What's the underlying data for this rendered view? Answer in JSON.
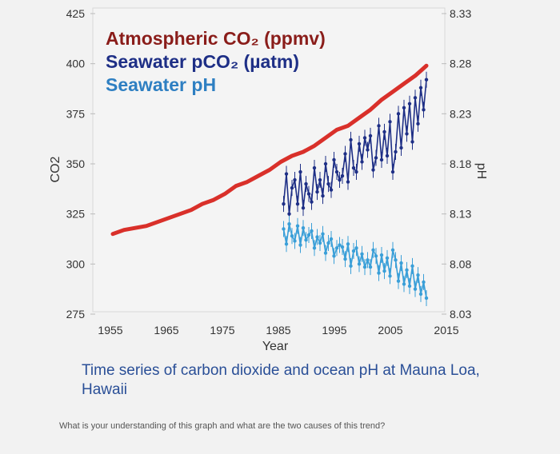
{
  "chart_data": {
    "type": "line",
    "title": "Time series of carbon dioxide and ocean pH at Mauna Loa, Hawaii",
    "xlabel": "Year",
    "ylabel_left": "CO2",
    "ylabel_right": "pH",
    "xlim": [
      1955,
      2015
    ],
    "ylim_left": [
      275,
      425
    ],
    "ylim_right": [
      8.03,
      8.33
    ],
    "x_ticks": [
      "1955",
      "1965",
      "1975",
      "1985",
      "1995",
      "2005",
      "2015"
    ],
    "y_ticks_left": [
      "425",
      "400",
      "375",
      "350",
      "325",
      "300",
      "275"
    ],
    "y_ticks_right": [
      "8.33",
      "8.28",
      "8.23",
      "8.18",
      "8.13",
      "8.08",
      "8.03"
    ],
    "legend": [
      "Atmospheric CO₂ (ppmv)",
      "Seawater pCO₂ (µatm)",
      "Seawater pH"
    ],
    "series": [
      {
        "name": "Atmospheric CO₂ (ppmv)",
        "color": "#d9302a",
        "axis": "left",
        "x": [
          1958,
          1960,
          1962,
          1964,
          1966,
          1968,
          1970,
          1972,
          1974,
          1976,
          1978,
          1980,
          1982,
          1984,
          1986,
          1988,
          1990,
          1992,
          1994,
          1996,
          1998,
          2000,
          2002,
          2004,
          2006,
          2008,
          2010,
          2012,
          2014
        ],
        "values": [
          315,
          317,
          318,
          319,
          321,
          323,
          325,
          327,
          330,
          332,
          335,
          339,
          341,
          344,
          347,
          351,
          354,
          356,
          359,
          363,
          367,
          369,
          373,
          377,
          382,
          386,
          390,
          394,
          399
        ]
      },
      {
        "name": "Seawater pCO₂ (µatm)",
        "color": "#1e2f86",
        "axis": "left",
        "x": [
          1988.5,
          1989,
          1989.5,
          1990,
          1990.5,
          1991,
          1991.5,
          1992,
          1992.5,
          1993,
          1993.5,
          1994,
          1994.5,
          1995,
          1995.5,
          1996,
          1996.5,
          1997,
          1997.5,
          1998,
          1998.5,
          1999,
          1999.5,
          2000,
          2000.5,
          2001,
          2001.5,
          2002,
          2002.5,
          2003,
          2003.5,
          2004,
          2004.5,
          2005,
          2005.5,
          2006,
          2006.5,
          2007,
          2007.5,
          2008,
          2008.5,
          2009,
          2009.5,
          2010,
          2010.5,
          2011,
          2011.5,
          2012,
          2012.5,
          2013,
          2013.5,
          2014
        ],
        "values": [
          330,
          345,
          325,
          338,
          342,
          330,
          346,
          328,
          340,
          335,
          331,
          348,
          336,
          342,
          334,
          350,
          340,
          337,
          352,
          346,
          342,
          344,
          355,
          341,
          362,
          348,
          346,
          360,
          351,
          363,
          357,
          364,
          347,
          353,
          369,
          352,
          366,
          354,
          371,
          346,
          356,
          375,
          358,
          378,
          365,
          380,
          361,
          383,
          370,
          388,
          377,
          392
        ]
      },
      {
        "name": "Seawater pH",
        "color": "#3a9fd8",
        "axis": "right",
        "x": [
          1988.5,
          1989,
          1989.5,
          1990,
          1990.5,
          1991,
          1991.5,
          1992,
          1992.5,
          1993,
          1993.5,
          1994,
          1994.5,
          1995,
          1995.5,
          1996,
          1996.5,
          1997,
          1997.5,
          1998,
          1998.5,
          1999,
          1999.5,
          2000,
          2000.5,
          2001,
          2001.5,
          2002,
          2002.5,
          2003,
          2003.5,
          2004,
          2004.5,
          2005,
          2005.5,
          2006,
          2006.5,
          2007,
          2007.5,
          2008,
          2008.5,
          2009,
          2009.5,
          2010,
          2010.5,
          2011,
          2011.5,
          2012,
          2012.5,
          2013,
          2013.5,
          2014
        ],
        "values": [
          8.115,
          8.1,
          8.12,
          8.108,
          8.103,
          8.118,
          8.099,
          8.116,
          8.104,
          8.109,
          8.113,
          8.096,
          8.107,
          8.101,
          8.11,
          8.091,
          8.101,
          8.105,
          8.088,
          8.096,
          8.099,
          8.097,
          8.085,
          8.1,
          8.078,
          8.093,
          8.096,
          8.08,
          8.09,
          8.077,
          8.084,
          8.077,
          8.094,
          8.088,
          8.071,
          8.089,
          8.073,
          8.086,
          8.068,
          8.094,
          8.084,
          8.063,
          8.081,
          8.06,
          8.074,
          8.058,
          8.078,
          8.055,
          8.069,
          8.05,
          8.062,
          8.046
        ]
      }
    ]
  },
  "caption": "Time series of carbon dioxide and ocean pH at Mauna Loa, Hawaii",
  "question": "What is your understanding of this graph and what are the two causes of this trend?"
}
